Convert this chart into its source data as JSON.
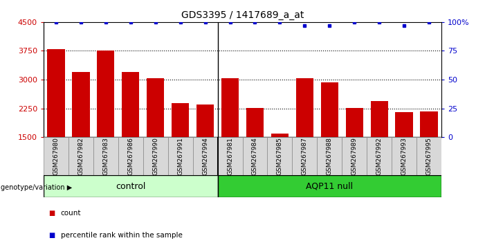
{
  "title": "GDS3395 / 1417689_a_at",
  "samples": [
    "GSM267980",
    "GSM267982",
    "GSM267983",
    "GSM267986",
    "GSM267990",
    "GSM267991",
    "GSM267994",
    "GSM267981",
    "GSM267984",
    "GSM267985",
    "GSM267987",
    "GSM267988",
    "GSM267989",
    "GSM267992",
    "GSM267993",
    "GSM267995"
  ],
  "counts": [
    3800,
    3200,
    3750,
    3200,
    3040,
    2380,
    2360,
    3040,
    2260,
    1590,
    3040,
    2920,
    2260,
    2440,
    2160,
    2180
  ],
  "percentile_ranks": [
    100,
    100,
    100,
    100,
    100,
    100,
    100,
    100,
    100,
    100,
    97,
    97,
    100,
    100,
    97,
    100
  ],
  "group_labels": [
    "control",
    "AQP11 null"
  ],
  "group_colors": [
    "#ccffcc",
    "#33cc33"
  ],
  "bar_color": "#cc0000",
  "dot_color": "#0000cc",
  "ylim": [
    1500,
    4500
  ],
  "yticks": [
    1500,
    2250,
    3000,
    3750,
    4500
  ],
  "right_yticks": [
    0,
    25,
    50,
    75,
    100
  ],
  "right_ytick_labels": [
    "0",
    "25",
    "50",
    "75",
    "100%"
  ],
  "control_count": 7,
  "legend_count_label": "count",
  "legend_pct_label": "percentile rank within the sample",
  "gridlines": [
    2250,
    3000,
    3750
  ]
}
